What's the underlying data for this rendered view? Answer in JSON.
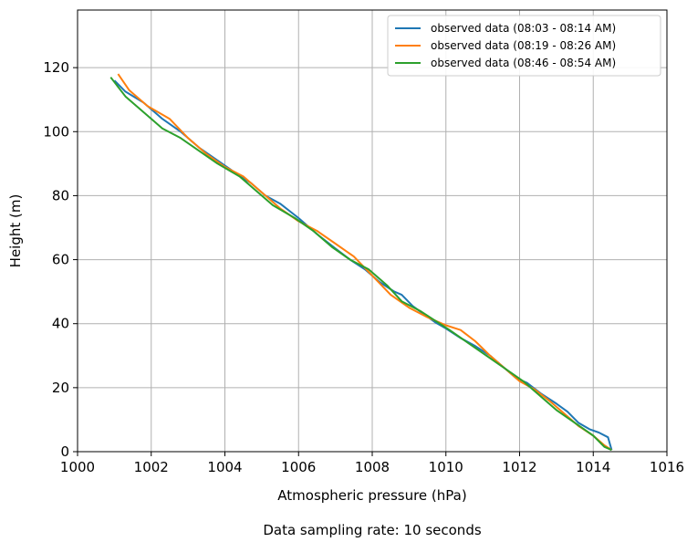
{
  "chart_data": {
    "type": "line",
    "title": "",
    "xlabel": "Atmospheric pressure (hPa)",
    "ylabel": "Height (m)",
    "caption": "Data sampling rate: 10 seconds",
    "xlim": [
      1000,
      1016
    ],
    "ylim": [
      0,
      138
    ],
    "xticks": [
      1000,
      1002,
      1004,
      1006,
      1008,
      1010,
      1012,
      1014,
      1016
    ],
    "yticks": [
      0,
      20,
      40,
      60,
      80,
      100,
      120
    ],
    "grid": true,
    "legend_position": "top-right",
    "series": [
      {
        "name": "observed data (08:03 - 08:14 AM)",
        "color": "#1f77b4",
        "x": [
          1001.0,
          1001.3,
          1001.8,
          1002.3,
          1002.8,
          1003.3,
          1003.8,
          1004.3,
          1004.7,
          1005.1,
          1005.5,
          1006.0,
          1006.5,
          1007.0,
          1007.4,
          1007.8,
          1008.2,
          1008.6,
          1008.8,
          1009.1,
          1009.4,
          1009.7,
          1010.0,
          1010.4,
          1010.8,
          1011.2,
          1011.6,
          1011.9,
          1012.2,
          1012.6,
          1013.0,
          1013.3,
          1013.6,
          1013.9,
          1014.15,
          1014.4,
          1014.5
        ],
        "y": [
          116,
          112.5,
          109,
          104,
          100,
          95,
          91,
          87,
          84,
          80,
          77.5,
          73,
          68,
          63.5,
          60,
          57,
          53,
          50,
          49,
          45.5,
          43,
          40.5,
          38.5,
          35.5,
          33,
          30,
          26,
          23,
          21.5,
          18,
          15,
          12.5,
          9,
          7,
          6,
          4.5,
          0.5
        ]
      },
      {
        "name": "observed data (08:19 - 08:26 AM)",
        "color": "#ff7f0e",
        "x": [
          1001.1,
          1001.4,
          1001.9,
          1002.5,
          1003.0,
          1003.5,
          1004.0,
          1004.5,
          1005.0,
          1005.5,
          1006.0,
          1006.5,
          1007.0,
          1007.5,
          1008.0,
          1008.5,
          1009.0,
          1009.5,
          1010.0,
          1010.4,
          1010.8,
          1011.2,
          1011.6,
          1012.0,
          1012.4,
          1012.8,
          1013.2,
          1013.6,
          1014.0,
          1014.3,
          1014.5
        ],
        "y": [
          118,
          113,
          108,
          104,
          98,
          93,
          89,
          86,
          81,
          76,
          72,
          69,
          65,
          61,
          55,
          49,
          45,
          42,
          39.5,
          38,
          34.5,
          30,
          26,
          22,
          19.5,
          16,
          12,
          8,
          5,
          2,
          0.5
        ]
      },
      {
        "name": "observed data (08:46 - 08:54 AM)",
        "color": "#2ca02c",
        "x": [
          1000.9,
          1001.3,
          1001.8,
          1002.3,
          1002.8,
          1003.3,
          1003.8,
          1004.4,
          1004.8,
          1005.3,
          1005.9,
          1006.4,
          1006.9,
          1007.4,
          1007.9,
          1008.4,
          1008.8,
          1009.3,
          1009.7,
          1010.1,
          1010.6,
          1011.1,
          1011.6,
          1012.1,
          1012.5,
          1013.0,
          1013.5,
          1014.0,
          1014.3,
          1014.5
        ],
        "y": [
          117,
          111,
          106,
          101,
          98,
          94,
          90,
          86,
          82,
          77,
          73,
          69,
          64,
          60,
          57,
          52,
          47,
          44,
          41,
          38,
          34,
          30,
          26,
          22,
          18,
          13,
          9,
          5,
          1.5,
          0.5
        ]
      }
    ]
  }
}
